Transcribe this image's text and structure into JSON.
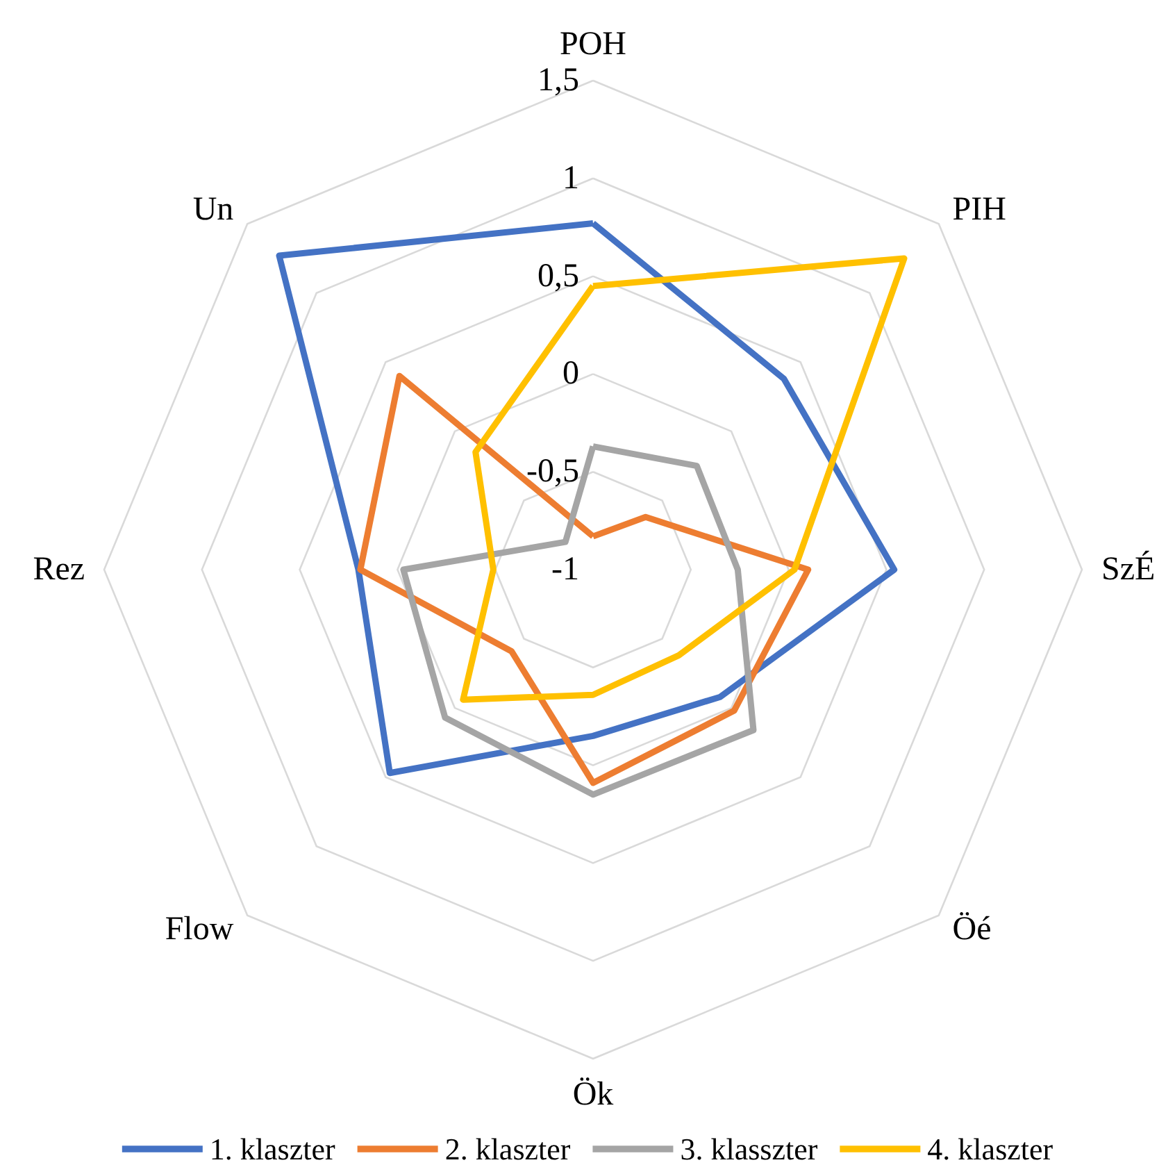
{
  "chart_data": {
    "type": "radar",
    "categories": [
      "POH",
      "PIH",
      "SzÉ",
      "Öé",
      "Ök",
      "Flow",
      "Rez",
      "Un"
    ],
    "ylim": [
      -1,
      1.5
    ],
    "yticks": [
      -1,
      {
        "value": -0.5,
        "label": "-0,5"
      },
      0,
      {
        "value": 0.5,
        "label": "0,5"
      },
      1,
      {
        "value": 1.5,
        "label": "1,5"
      }
    ],
    "grid": true,
    "legend": "bottom",
    "marker": "none",
    "line_style": "solid",
    "series": [
      {
        "name": "1. klaszter",
        "color": "#4472c4",
        "values": [
          0.77,
          0.38,
          0.54,
          -0.08,
          -0.15,
          0.47,
          0.2,
          1.27
        ]
      },
      {
        "name": "2. klaszter",
        "color": "#ed7d31",
        "values": [
          -0.83,
          -0.62,
          0.1,
          0.02,
          0.09,
          -0.41,
          0.19,
          0.4
        ]
      },
      {
        "name": "3. klasszter",
        "color": "#a5a5a5",
        "values": [
          -0.37,
          -0.25,
          -0.26,
          0.16,
          0.15,
          0.07,
          -0.03,
          -0.8
        ]
      },
      {
        "name": "4. klaszter",
        "color": "#ffc000",
        "values": [
          0.45,
          1.25,
          0.03,
          -0.38,
          -0.36,
          -0.06,
          -0.49,
          -0.15
        ]
      }
    ]
  }
}
